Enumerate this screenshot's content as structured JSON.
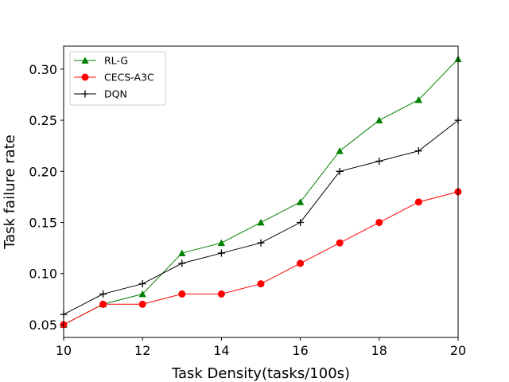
{
  "chart_data": {
    "type": "line",
    "title": "",
    "xlabel": "Task Density(tasks/100s)",
    "ylabel": "Task failure rate",
    "xlim": [
      10,
      20
    ],
    "ylim": [
      0.0375,
      0.3225
    ],
    "x": [
      10,
      11,
      12,
      13,
      14,
      15,
      16,
      17,
      18,
      19,
      20
    ],
    "xticks": [
      10,
      12,
      14,
      16,
      18,
      20
    ],
    "xtick_labels": [
      "10",
      "12",
      "14",
      "16",
      "18",
      "20"
    ],
    "yticks": [
      0.05,
      0.1,
      0.15,
      0.2,
      0.25,
      0.3
    ],
    "ytick_labels": [
      "0.05",
      "0.10",
      "0.15",
      "0.20",
      "0.25",
      "0.30"
    ],
    "legend_position": "top-left",
    "grid": false,
    "series": [
      {
        "name": "RL-G",
        "color": "#008000",
        "marker": "triangle",
        "values": [
          0.05,
          0.07,
          0.08,
          0.12,
          0.13,
          0.15,
          0.17,
          0.22,
          0.25,
          0.27,
          0.31
        ]
      },
      {
        "name": "CECS-A3C",
        "color": "#ff0000",
        "marker": "circle",
        "values": [
          0.05,
          0.07,
          0.07,
          0.08,
          0.08,
          0.09,
          0.11,
          0.13,
          0.15,
          0.17,
          0.18
        ]
      },
      {
        "name": "DQN",
        "color": "#000000",
        "marker": "plus",
        "values": [
          0.06,
          0.08,
          0.09,
          0.11,
          0.12,
          0.13,
          0.15,
          0.2,
          0.21,
          0.22,
          0.25
        ]
      }
    ]
  }
}
